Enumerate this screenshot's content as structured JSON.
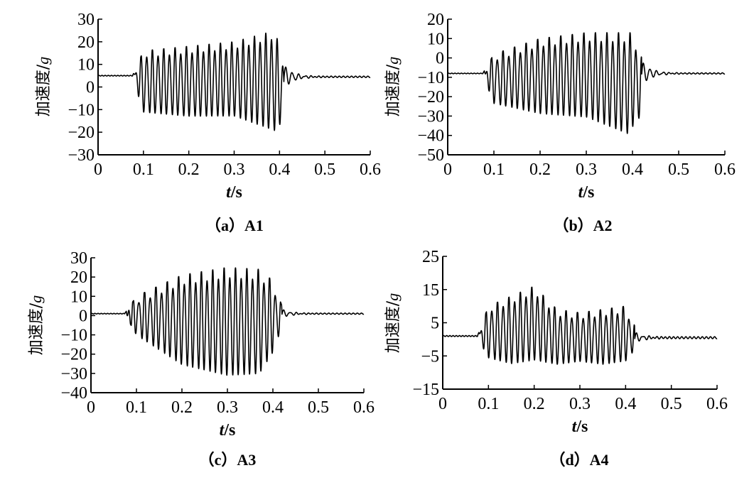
{
  "chart_data": [
    {
      "type": "line",
      "caption": "（a）A1",
      "ylabel": "加速度/g",
      "ylabel_main": "加速度/",
      "ylabel_unit": "g",
      "xlabel_var": "t",
      "xlabel_unit": "/s",
      "xlim": [
        0,
        0.6
      ],
      "ylim": [
        -30,
        30
      ],
      "xticks": [
        "0",
        "0.1",
        "0.2",
        "0.3",
        "0.4",
        "0.5",
        "0.6"
      ],
      "yticks": [
        "30",
        "20",
        "10",
        "0",
        "−10",
        "−20",
        "−30"
      ],
      "ytick_values": [
        30,
        20,
        10,
        0,
        -10,
        -20,
        -30
      ],
      "baseline": 5,
      "tail": 4.5,
      "t_start": 0.076,
      "t_end": 0.41,
      "freq": 80,
      "envelope_upper": [
        [
          0.076,
          5
        ],
        [
          0.1,
          16
        ],
        [
          0.2,
          18
        ],
        [
          0.3,
          20
        ],
        [
          0.39,
          25
        ],
        [
          0.41,
          10
        ]
      ],
      "envelope_lower": [
        [
          0.076,
          5
        ],
        [
          0.1,
          -12
        ],
        [
          0.2,
          -14
        ],
        [
          0.3,
          -14
        ],
        [
          0.39,
          -21
        ],
        [
          0.41,
          -15
        ]
      ],
      "mid_band": [
        -1,
        6
      ]
    },
    {
      "type": "line",
      "caption": "（b）A2",
      "ylabel": "加速度/g",
      "ylabel_main": "加速度/",
      "ylabel_unit": "g",
      "xlabel_var": "t",
      "xlabel_unit": "/s",
      "xlim": [
        0,
        0.6
      ],
      "ylim": [
        -50,
        20
      ],
      "xticks": [
        "0",
        "0.1",
        "0.2",
        "0.3",
        "0.4",
        "0.5",
        "0.6"
      ],
      "yticks": [
        "20",
        "10",
        "0",
        "−10",
        "−20",
        "−30",
        "−40",
        "−50"
      ],
      "ytick_values": [
        20,
        10,
        0,
        -10,
        -20,
        -30,
        -40,
        -50
      ],
      "baseline": -8,
      "tail": -8,
      "t_start": 0.076,
      "t_end": 0.42,
      "freq": 80,
      "envelope_upper": [
        [
          0.076,
          -8
        ],
        [
          0.1,
          2
        ],
        [
          0.2,
          10
        ],
        [
          0.3,
          13
        ],
        [
          0.4,
          13
        ],
        [
          0.42,
          0
        ]
      ],
      "envelope_lower": [
        [
          0.076,
          -8
        ],
        [
          0.1,
          -24
        ],
        [
          0.2,
          -30
        ],
        [
          0.3,
          -32
        ],
        [
          0.39,
          -41
        ],
        [
          0.42,
          -30
        ]
      ],
      "mid_band": [
        -10,
        0
      ]
    },
    {
      "type": "line",
      "caption": "（c）A3",
      "ylabel": "加速度/g",
      "ylabel_main": "加速度/",
      "ylabel_unit": "g",
      "xlabel_var": "t",
      "xlabel_unit": "/s",
      "xlim": [
        0,
        0.6
      ],
      "ylim": [
        -40,
        30
      ],
      "xticks": [
        "0",
        "0.1",
        "0.2",
        "0.3",
        "0.4",
        "0.5",
        "0.6"
      ],
      "yticks": [
        "30",
        "20",
        "10",
        "0",
        "−10",
        "−20",
        "−30",
        "−40"
      ],
      "ytick_values": [
        30,
        20,
        10,
        0,
        -10,
        -20,
        -30,
        -40
      ],
      "baseline": 1,
      "tail": 1,
      "t_start": 0.074,
      "t_end": 0.42,
      "freq": 80,
      "envelope_upper": [
        [
          0.074,
          1
        ],
        [
          0.1,
          10
        ],
        [
          0.2,
          21
        ],
        [
          0.3,
          25
        ],
        [
          0.37,
          24
        ],
        [
          0.4,
          18
        ],
        [
          0.42,
          5
        ]
      ],
      "envelope_lower": [
        [
          0.074,
          1
        ],
        [
          0.1,
          -10
        ],
        [
          0.2,
          -27
        ],
        [
          0.3,
          -33
        ],
        [
          0.37,
          -32
        ],
        [
          0.4,
          -20
        ],
        [
          0.42,
          -5
        ]
      ],
      "mid_band": [
        -4,
        8
      ]
    },
    {
      "type": "line",
      "caption": "（d）A4",
      "ylabel": "加速度/g",
      "ylabel_main": "加速度/",
      "ylabel_unit": "g",
      "xlabel_var": "t",
      "xlabel_unit": "/s",
      "xlim": [
        0,
        0.6
      ],
      "ylim": [
        -15,
        25
      ],
      "xticks": [
        "0",
        "0.1",
        "0.2",
        "0.3",
        "0.4",
        "0.5",
        "0.6"
      ],
      "yticks": [
        "25",
        "15",
        "5",
        "−5",
        "−15"
      ],
      "ytick_values": [
        25,
        15,
        5,
        -5,
        -15
      ],
      "baseline": 1,
      "tail": 0.5,
      "t_start": 0.076,
      "t_end": 0.42,
      "freq": 80,
      "envelope_upper": [
        [
          0.076,
          1
        ],
        [
          0.1,
          10
        ],
        [
          0.15,
          13
        ],
        [
          0.2,
          16
        ],
        [
          0.25,
          9
        ],
        [
          0.3,
          8
        ],
        [
          0.35,
          9
        ],
        [
          0.4,
          10
        ],
        [
          0.42,
          4
        ]
      ],
      "envelope_lower": [
        [
          0.076,
          1
        ],
        [
          0.1,
          -6
        ],
        [
          0.15,
          -8
        ],
        [
          0.2,
          -7
        ],
        [
          0.25,
          -8
        ],
        [
          0.3,
          -7
        ],
        [
          0.35,
          -8
        ],
        [
          0.4,
          -7
        ],
        [
          0.42,
          -3
        ]
      ],
      "mid_band": [
        -2,
        3
      ]
    }
  ]
}
